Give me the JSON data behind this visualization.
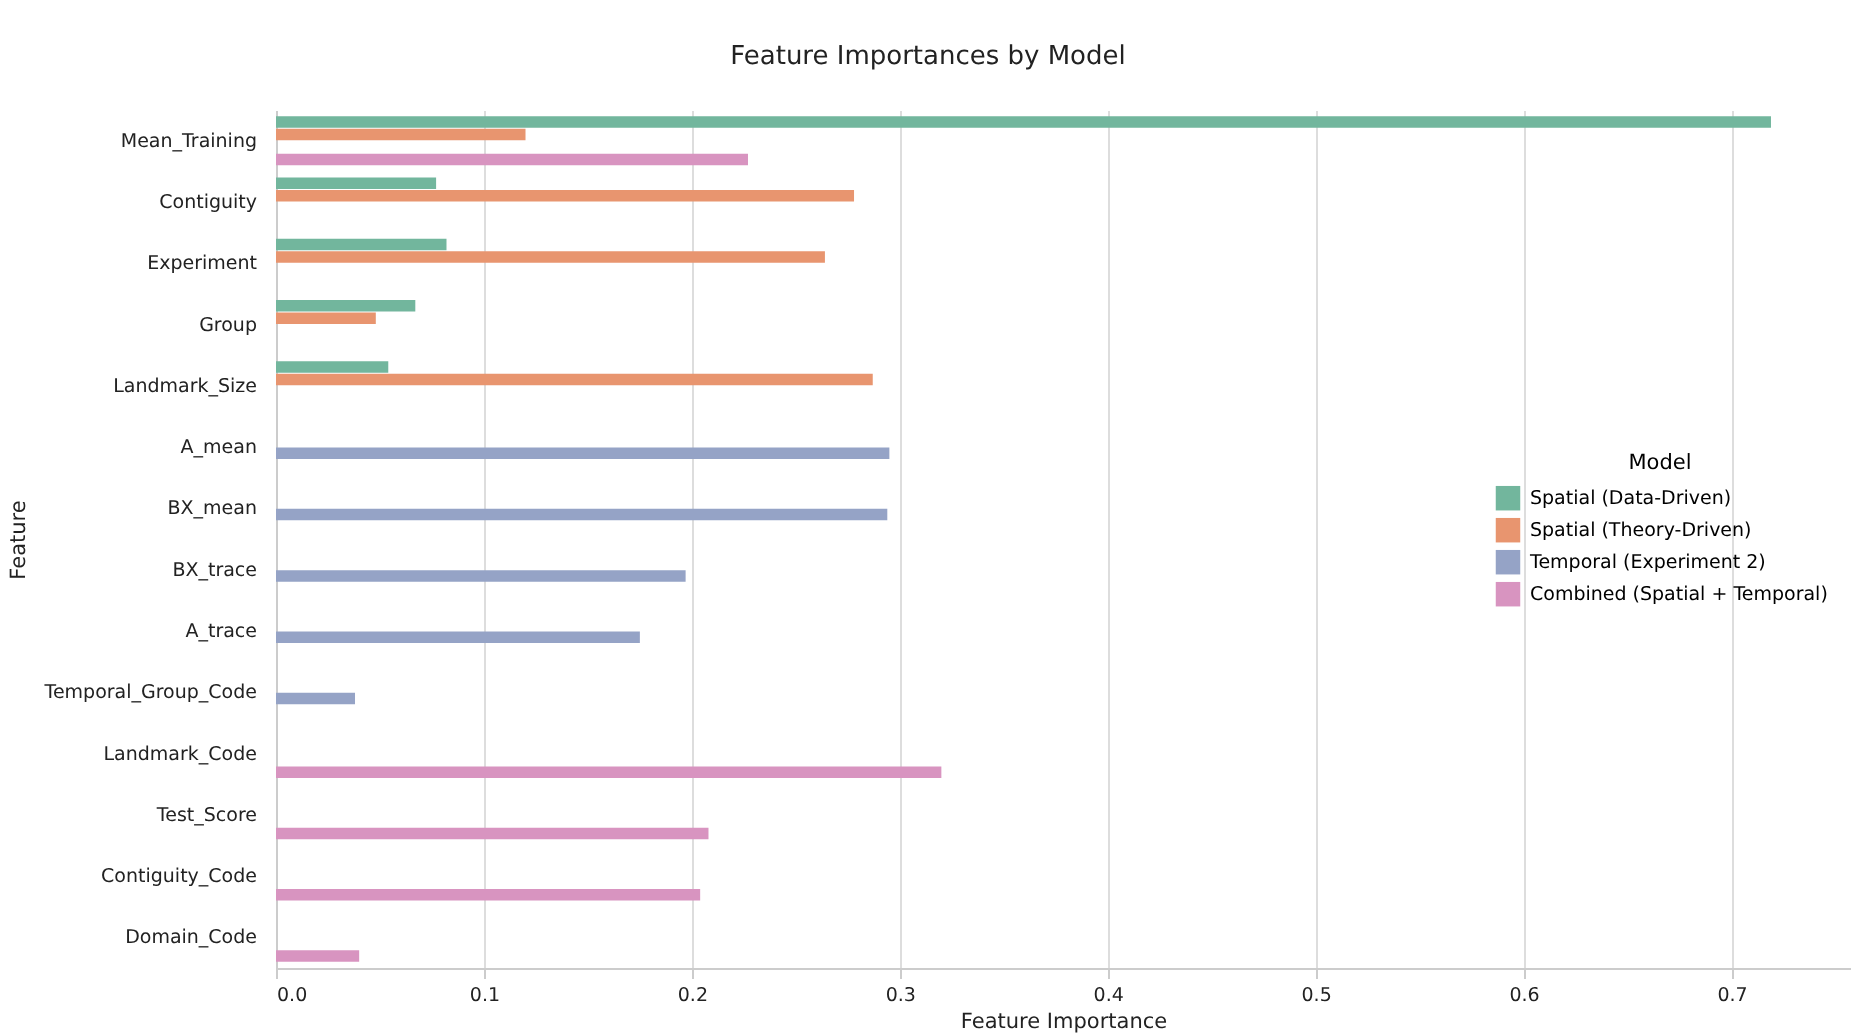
{
  "chart_data": {
    "type": "bar",
    "orientation": "horizontal",
    "title": "Feature Importances by Model",
    "xlabel": "Feature Importance",
    "ylabel": "Feature",
    "legend_title": "Model",
    "legend": "right",
    "grid": "x",
    "categories": [
      "Mean_Training",
      "Contiguity",
      "Experiment",
      "Group",
      "Landmark_Size",
      "A_mean",
      "BX_mean",
      "BX_trace",
      "A_trace",
      "Temporal_Group_Code",
      "Landmark_Code",
      "Test_Score",
      "Contiguity_Code",
      "Domain_Code"
    ],
    "xlim": [
      0,
      0.757
    ],
    "xticks": [
      {
        "value": 0,
        "label": "0.0"
      },
      {
        "value": 0.1,
        "label": "0.1"
      },
      {
        "value": 0.2,
        "label": "0.2"
      },
      {
        "value": 0.3,
        "label": "0.3"
      },
      {
        "value": 0.4,
        "label": "0.4"
      },
      {
        "value": 0.5,
        "label": "0.5"
      },
      {
        "value": 0.6,
        "label": "0.6"
      },
      {
        "value": 0.7,
        "label": "0.7"
      }
    ],
    "series": [
      {
        "name": "Spatial (Data-Driven)",
        "color": "#72b69d",
        "values": [
          0.719,
          0.077,
          0.082,
          0.067,
          0.054,
          null,
          null,
          null,
          null,
          null,
          null,
          null,
          null,
          null
        ]
      },
      {
        "name": "Spatial (Theory-Driven)",
        "color": "#e8956f",
        "values": [
          0.12,
          0.278,
          0.264,
          0.048,
          0.287,
          null,
          null,
          null,
          null,
          null,
          null,
          null,
          null,
          null
        ]
      },
      {
        "name": "Temporal (Experiment 2)",
        "color": "#95a3c6",
        "values": [
          null,
          null,
          null,
          null,
          null,
          0.295,
          0.294,
          0.197,
          0.175,
          0.038,
          null,
          null,
          null,
          null
        ]
      },
      {
        "name": "Combined (Spatial + Temporal)",
        "color": "#d894c0",
        "values": [
          0.227,
          null,
          null,
          null,
          null,
          null,
          null,
          null,
          null,
          null,
          0.32,
          0.208,
          0.204,
          0.04
        ]
      }
    ]
  }
}
